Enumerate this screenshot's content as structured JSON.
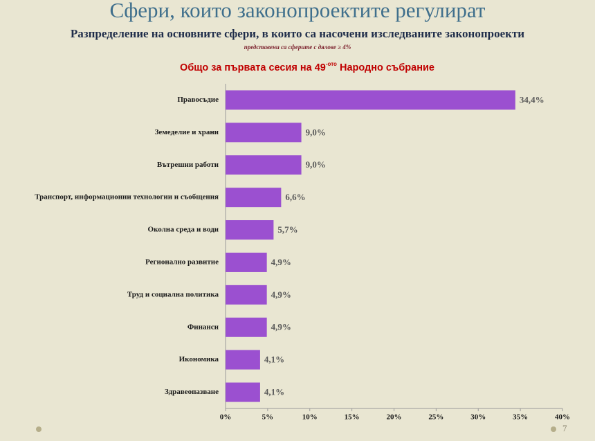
{
  "chart_data": {
    "type": "barh",
    "title": "Сфери, които законопроектите регулират",
    "subtitle": "Разпределение на основните сфери, в които са насочени изследваните законопроекти",
    "note": "представени са сферите с дялове ≥ 4%",
    "chart_title": "Общо за първата сесия на 49",
    "chart_title_sup": "-ото",
    "chart_title_end": " Народно събрание",
    "categories": [
      "Правосъдие",
      "Земеделие и храни",
      "Вътрешни работи",
      "Транспорт, информационни технологии и съобщения",
      "Околна среда и води",
      "Регионално развитие",
      "Труд и социална политика",
      "Финанси",
      "Икономика",
      "Здравеопазване"
    ],
    "values": [
      34.4,
      9.0,
      9.0,
      6.6,
      5.7,
      4.9,
      4.9,
      4.9,
      4.1,
      4.1
    ],
    "value_labels": [
      "34,4%",
      "9,0%",
      "9,0%",
      "6,6%",
      "5,7%",
      "4,9%",
      "4,9%",
      "4,9%",
      "4,1%",
      "4,1%"
    ],
    "color": "#9b50d0",
    "xlim": [
      0,
      40
    ],
    "xticks": [
      {
        "value": 0,
        "label": "0%"
      },
      {
        "value": 5,
        "label": "5%"
      },
      {
        "value": 10,
        "label": "10%"
      },
      {
        "value": 15,
        "label": "15%"
      },
      {
        "value": 20,
        "label": "20%"
      },
      {
        "value": 25,
        "label": "25%"
      },
      {
        "value": 30,
        "label": "30%"
      },
      {
        "value": 35,
        "label": "35%"
      },
      {
        "value": 40,
        "label": "40%"
      }
    ],
    "grid": false
  },
  "page_number": "7"
}
